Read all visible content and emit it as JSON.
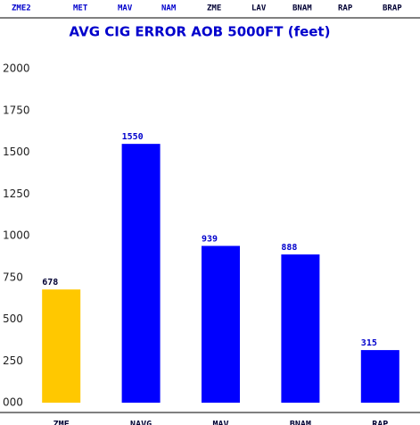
{
  "nav": [
    {
      "label": "ZME2",
      "color": "#0000cc"
    },
    {
      "label": "MET",
      "color": "#0000cc"
    },
    {
      "label": "MAV",
      "color": "#0000cc"
    },
    {
      "label": "NAM",
      "color": "#0000cc"
    },
    {
      "label": "ZME",
      "color": "#000033"
    },
    {
      "label": "LAV",
      "color": "#000033"
    },
    {
      "label": "BNAM",
      "color": "#000033"
    },
    {
      "label": "RAP",
      "color": "#000033"
    },
    {
      "label": "BRAP",
      "color": "#000033"
    }
  ],
  "chart_data": {
    "type": "bar",
    "title": "AVG CIG ERROR AOB 5000FT (feet)",
    "categories": [
      "ZME",
      "NAVG",
      "MAV",
      "BNAM",
      "RAP"
    ],
    "values": [
      678,
      1550,
      939,
      888,
      315
    ],
    "colors": [
      "#ffc800",
      "#0000ff",
      "#0000ff",
      "#0000ff",
      "#0000ff"
    ],
    "label_colors": [
      "#000033",
      "#0000cc",
      "#0000cc",
      "#0000cc",
      "#0000cc"
    ],
    "ylim": [
      0,
      2000
    ],
    "yticks": [
      {
        "value": 0,
        "label": "000"
      },
      250,
      500,
      750,
      1000,
      1250,
      1500,
      1750,
      2000
    ],
    "grid": false
  }
}
